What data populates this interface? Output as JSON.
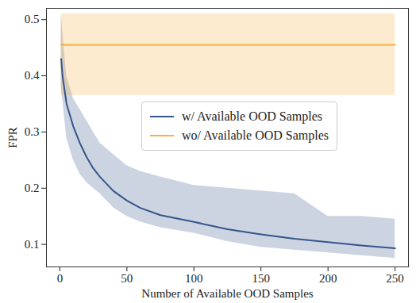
{
  "chart_data": {
    "type": "line",
    "x_label": "Number of Available OOD Samples",
    "y_label": "FPR",
    "x": [
      1,
      2,
      5,
      10,
      15,
      20,
      25,
      30,
      40,
      50,
      60,
      75,
      100,
      125,
      150,
      175,
      200,
      225,
      250
    ],
    "series": [
      {
        "name": "w/ Available OOD Samples",
        "color": "#34558b",
        "values": [
          0.43,
          0.4,
          0.35,
          0.31,
          0.28,
          0.255,
          0.235,
          0.22,
          0.195,
          0.178,
          0.165,
          0.152,
          0.14,
          0.127,
          0.118,
          0.11,
          0.104,
          0.098,
          0.093
        ],
        "lower": [
          0.38,
          0.36,
          0.29,
          0.25,
          0.225,
          0.21,
          0.2,
          0.19,
          0.165,
          0.15,
          0.14,
          0.13,
          0.12,
          0.105,
          0.095,
          0.09,
          0.085,
          0.08,
          0.075
        ],
        "upper": [
          0.51,
          0.48,
          0.4,
          0.36,
          0.34,
          0.32,
          0.3,
          0.28,
          0.26,
          0.24,
          0.23,
          0.22,
          0.205,
          0.2,
          0.195,
          0.19,
          0.15,
          0.15,
          0.145
        ]
      },
      {
        "name": "wo/ Available OOD Samples",
        "color": "#f5b041",
        "values": [
          0.455,
          0.455,
          0.455,
          0.455,
          0.455,
          0.455,
          0.455,
          0.455,
          0.455,
          0.455,
          0.455,
          0.455,
          0.455,
          0.455,
          0.455,
          0.455,
          0.455,
          0.455,
          0.455
        ],
        "lower": [
          0.365,
          0.365,
          0.365,
          0.365,
          0.365,
          0.365,
          0.365,
          0.365,
          0.365,
          0.365,
          0.365,
          0.365,
          0.365,
          0.365,
          0.365,
          0.365,
          0.365,
          0.365,
          0.365
        ],
        "upper": [
          0.51,
          0.51,
          0.51,
          0.51,
          0.51,
          0.51,
          0.51,
          0.51,
          0.51,
          0.51,
          0.51,
          0.51,
          0.51,
          0.51,
          0.51,
          0.51,
          0.51,
          0.51,
          0.51
        ]
      }
    ],
    "xlim": [
      -10,
      260
    ],
    "xticks": [
      0,
      50,
      100,
      150,
      200,
      250
    ],
    "ylim": [
      0.06,
      0.52
    ],
    "yticks": [
      0.1,
      0.2,
      0.3,
      0.4,
      0.5
    ],
    "grid": false,
    "legend": "center right"
  }
}
